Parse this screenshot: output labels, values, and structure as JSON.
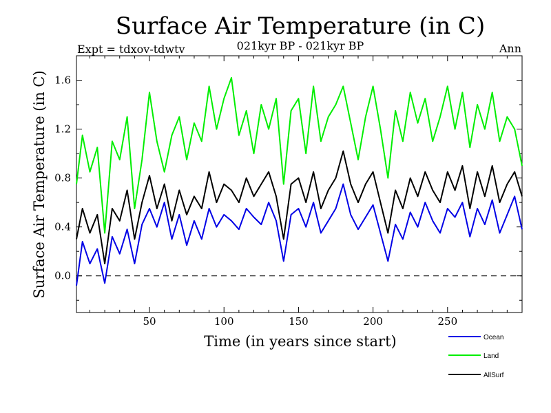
{
  "chart_data": {
    "type": "line",
    "title": "Surface Air Temperature (in C)",
    "subtitle_left": "Expt = tdxov-tdwtv",
    "subtitle_center": "021kyr BP - 021kyr BP",
    "subtitle_right": "Ann",
    "xlabel": "Time (in years since start)",
    "ylabel": "Surface Air Temperature (in C)",
    "xlim": [
      1,
      300
    ],
    "ylim": [
      -0.3,
      1.8
    ],
    "xticks": [
      50,
      100,
      150,
      200,
      250
    ],
    "yticks": [
      0.0,
      0.4,
      0.8,
      1.2,
      1.6
    ],
    "ytick_labels": [
      "0.0",
      "0.4",
      "0.8",
      "1.2",
      "1.6"
    ],
    "zero_line": {
      "y": 0.0,
      "style": "dashed"
    },
    "grid": false,
    "legend_placement": "below-right",
    "series": [
      {
        "name": "Ocean",
        "color": "#0000e6",
        "x": [
          1,
          5,
          10,
          15,
          20,
          25,
          30,
          35,
          40,
          45,
          50,
          55,
          60,
          65,
          70,
          75,
          80,
          85,
          90,
          95,
          100,
          105,
          110,
          115,
          120,
          125,
          130,
          135,
          140,
          145,
          150,
          155,
          160,
          165,
          170,
          175,
          180,
          185,
          190,
          195,
          200,
          205,
          210,
          215,
          220,
          225,
          230,
          235,
          240,
          245,
          250,
          255,
          260,
          265,
          270,
          275,
          280,
          285,
          290,
          295,
          300
        ],
        "values": [
          -0.08,
          0.28,
          0.1,
          0.22,
          -0.06,
          0.32,
          0.18,
          0.38,
          0.1,
          0.42,
          0.55,
          0.4,
          0.6,
          0.3,
          0.5,
          0.25,
          0.45,
          0.3,
          0.55,
          0.4,
          0.5,
          0.45,
          0.38,
          0.55,
          0.48,
          0.42,
          0.6,
          0.45,
          0.12,
          0.5,
          0.55,
          0.4,
          0.6,
          0.35,
          0.45,
          0.55,
          0.75,
          0.5,
          0.38,
          0.48,
          0.58,
          0.35,
          0.12,
          0.42,
          0.3,
          0.52,
          0.4,
          0.6,
          0.45,
          0.35,
          0.55,
          0.48,
          0.6,
          0.32,
          0.55,
          0.42,
          0.62,
          0.35,
          0.5,
          0.65,
          0.38
        ]
      },
      {
        "name": "Land",
        "color": "#00ee00",
        "x": [
          1,
          5,
          10,
          15,
          20,
          25,
          30,
          35,
          40,
          45,
          50,
          55,
          60,
          65,
          70,
          75,
          80,
          85,
          90,
          95,
          100,
          105,
          110,
          115,
          120,
          125,
          130,
          135,
          140,
          145,
          150,
          155,
          160,
          165,
          170,
          175,
          180,
          185,
          190,
          195,
          200,
          205,
          210,
          215,
          220,
          225,
          230,
          235,
          240,
          245,
          250,
          255,
          260,
          265,
          270,
          275,
          280,
          285,
          290,
          295,
          300
        ],
        "values": [
          0.75,
          1.15,
          0.85,
          1.05,
          0.35,
          1.1,
          0.95,
          1.3,
          0.55,
          0.95,
          1.5,
          1.1,
          0.85,
          1.15,
          1.3,
          0.95,
          1.25,
          1.1,
          1.55,
          1.2,
          1.45,
          1.62,
          1.15,
          1.35,
          1.0,
          1.4,
          1.2,
          1.45,
          0.75,
          1.35,
          1.45,
          1.0,
          1.55,
          1.1,
          1.3,
          1.4,
          1.55,
          1.25,
          0.95,
          1.3,
          1.55,
          1.2,
          0.8,
          1.35,
          1.1,
          1.5,
          1.25,
          1.45,
          1.1,
          1.3,
          1.55,
          1.2,
          1.5,
          1.05,
          1.4,
          1.2,
          1.5,
          1.1,
          1.3,
          1.2,
          0.9
        ]
      },
      {
        "name": "AllSurf",
        "color": "#000000",
        "x": [
          1,
          5,
          10,
          15,
          20,
          25,
          30,
          35,
          40,
          45,
          50,
          55,
          60,
          65,
          70,
          75,
          80,
          85,
          90,
          95,
          100,
          105,
          110,
          115,
          120,
          125,
          130,
          135,
          140,
          145,
          150,
          155,
          160,
          165,
          170,
          175,
          180,
          185,
          190,
          195,
          200,
          205,
          210,
          215,
          220,
          225,
          230,
          235,
          240,
          245,
          250,
          255,
          260,
          265,
          270,
          275,
          280,
          285,
          290,
          295,
          300
        ],
        "values": [
          0.3,
          0.55,
          0.35,
          0.5,
          0.1,
          0.55,
          0.45,
          0.7,
          0.3,
          0.6,
          0.82,
          0.55,
          0.75,
          0.45,
          0.7,
          0.5,
          0.65,
          0.55,
          0.85,
          0.6,
          0.75,
          0.7,
          0.6,
          0.8,
          0.65,
          0.75,
          0.85,
          0.65,
          0.3,
          0.75,
          0.8,
          0.6,
          0.85,
          0.55,
          0.7,
          0.8,
          1.02,
          0.75,
          0.6,
          0.75,
          0.85,
          0.6,
          0.35,
          0.7,
          0.55,
          0.8,
          0.65,
          0.85,
          0.7,
          0.6,
          0.85,
          0.7,
          0.9,
          0.55,
          0.85,
          0.65,
          0.9,
          0.6,
          0.75,
          0.85,
          0.65
        ]
      }
    ]
  }
}
